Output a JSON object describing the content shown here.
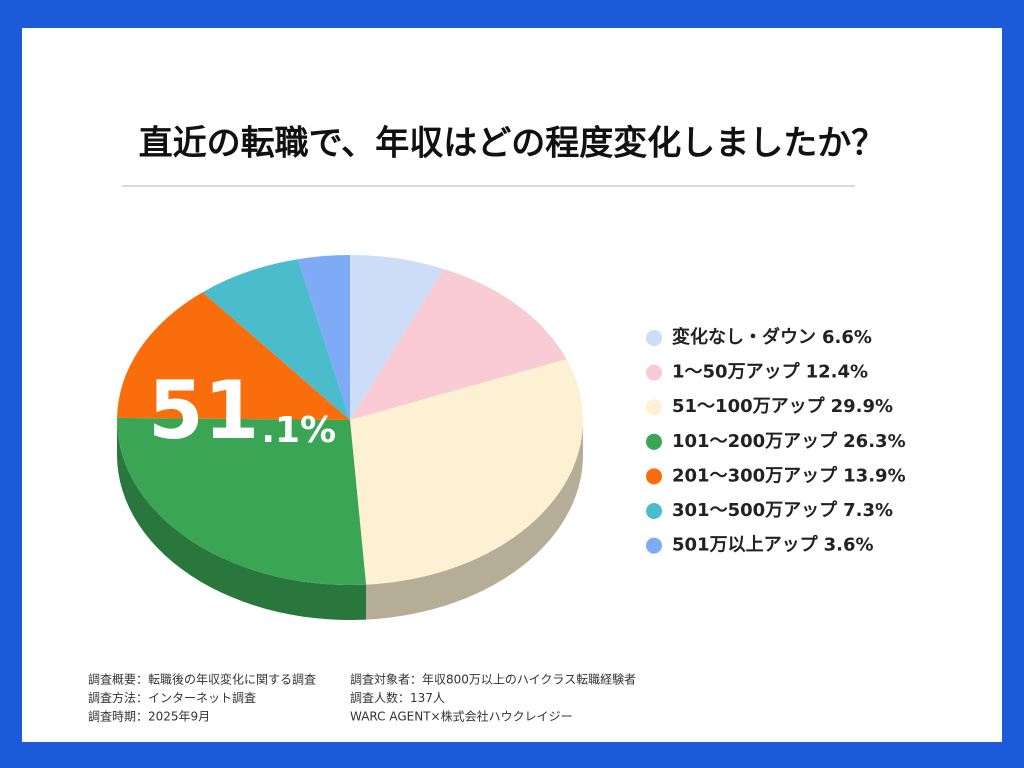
{
  "chart_data": {
    "type": "pie",
    "title": "直近の転職で、年収はどの程度変化しましたか？",
    "categories": [
      "変化なし・ダウン",
      "1〜50万アップ",
      "51〜100万アップ",
      "101〜200万アップ",
      "201〜300万アップ",
      "301〜500万アップ",
      "501万以上アップ"
    ],
    "values": [
      6.6,
      12.4,
      29.9,
      26.3,
      13.9,
      7.3,
      3.6
    ],
    "value_labels": [
      "6.6%",
      "12.4%",
      "29.9%",
      "26.3%",
      "13.9%",
      "7.3%",
      "3.6%"
    ],
    "colors": [
      "#cddcf7",
      "#f9cbd4",
      "#fdf1d3",
      "#3aa655",
      "#f96d0c",
      "#4bbccb",
      "#7eaaf6"
    ],
    "annotation": [
      "51",
      ".1%"
    ],
    "legend": "right"
  },
  "footer": {
    "rows": [
      [
        "調査概要：転職後の年収変化に関する調査",
        "調査対象者：年収800万以上のハイクラス転職経験者"
      ],
      [
        "調査方法：インターネット調査",
        "調査人数：137人"
      ],
      [
        "調査時期：2025年9月",
        "WARC AGENT×株式会社ハウクレイジー"
      ]
    ]
  }
}
